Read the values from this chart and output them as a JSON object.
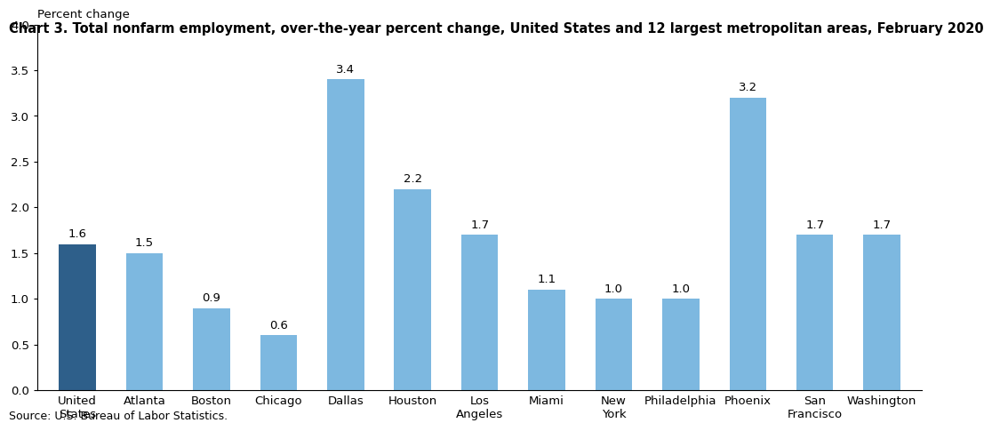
{
  "title": "Chart 3. Total nonfarm employment, over-the-year percent change, United States and 12 largest metropolitan areas, February 2020",
  "ylabel": "Percent change",
  "ylim": [
    0.0,
    4.0
  ],
  "yticks": [
    0.0,
    0.5,
    1.0,
    1.5,
    2.0,
    2.5,
    3.0,
    3.5,
    4.0
  ],
  "categories": [
    "United\nStates",
    "Atlanta",
    "Boston",
    "Chicago",
    "Dallas",
    "Houston",
    "Los\nAngeles",
    "Miami",
    "New\nYork",
    "Philadelphia",
    "Phoenix",
    "San\nFrancisco",
    "Washington"
  ],
  "values": [
    1.6,
    1.5,
    0.9,
    0.6,
    3.4,
    2.2,
    1.7,
    1.1,
    1.0,
    1.0,
    3.2,
    1.7,
    1.7
  ],
  "bar_colors": [
    "#2e5f8a",
    "#7db8e0",
    "#7db8e0",
    "#7db8e0",
    "#7db8e0",
    "#7db8e0",
    "#7db8e0",
    "#7db8e0",
    "#7db8e0",
    "#7db8e0",
    "#7db8e0",
    "#7db8e0",
    "#7db8e0"
  ],
  "source_text": "Source: U.S. Bureau of Labor Statistics.",
  "title_fontsize": 10.5,
  "label_fontsize": 9.5,
  "tick_fontsize": 9.5,
  "value_fontsize": 9.5,
  "source_fontsize": 9,
  "bar_width": 0.55
}
